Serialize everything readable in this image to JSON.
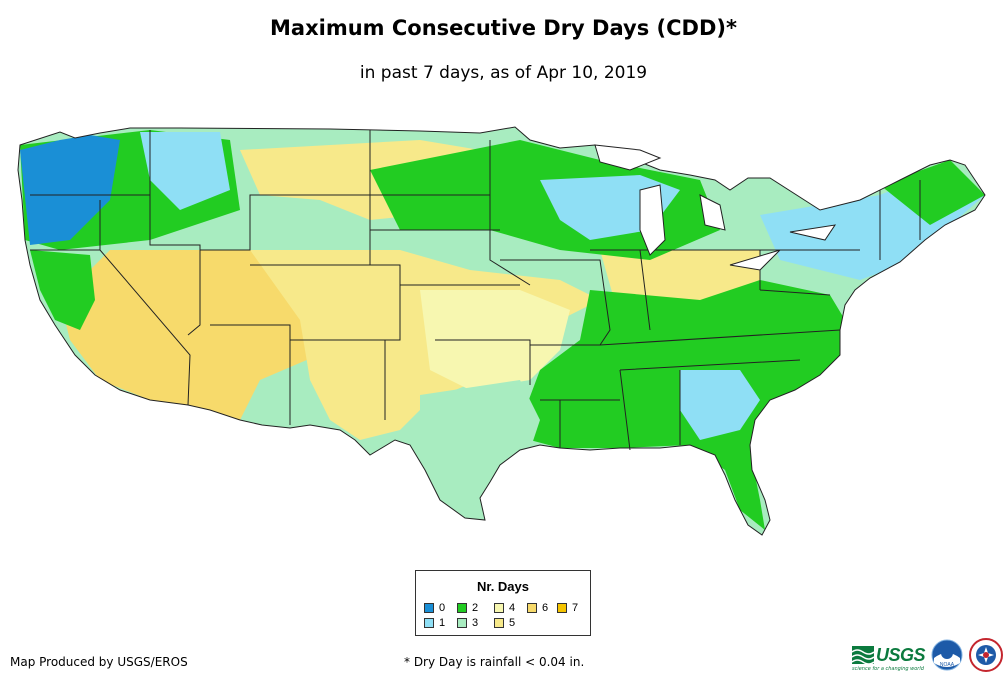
{
  "header": {
    "title": "Maximum Consecutive Dry Days (CDD)*",
    "subtitle": "in past 7 days, as of Apr 10, 2019"
  },
  "legend": {
    "title": "Nr. Days",
    "items": [
      {
        "label": "0",
        "color": "#1a8fd6"
      },
      {
        "label": "1",
        "color": "#8fdff5"
      },
      {
        "label": "2",
        "color": "#22cc22"
      },
      {
        "label": "3",
        "color": "#a8ecc0"
      },
      {
        "label": "4",
        "color": "#f7f7b0"
      },
      {
        "label": "5",
        "color": "#f7e98a"
      },
      {
        "label": "6",
        "color": "#f7da6b"
      },
      {
        "label": "7",
        "color": "#f5c400"
      }
    ]
  },
  "footer": {
    "credit": "Map Produced by USGS/EROS",
    "footnote": "* Dry Day is rainfall < 0.04 in.",
    "usgs_label": "USGS",
    "usgs_tagline": "science for a changing world",
    "noaa_label": "NOAA"
  }
}
